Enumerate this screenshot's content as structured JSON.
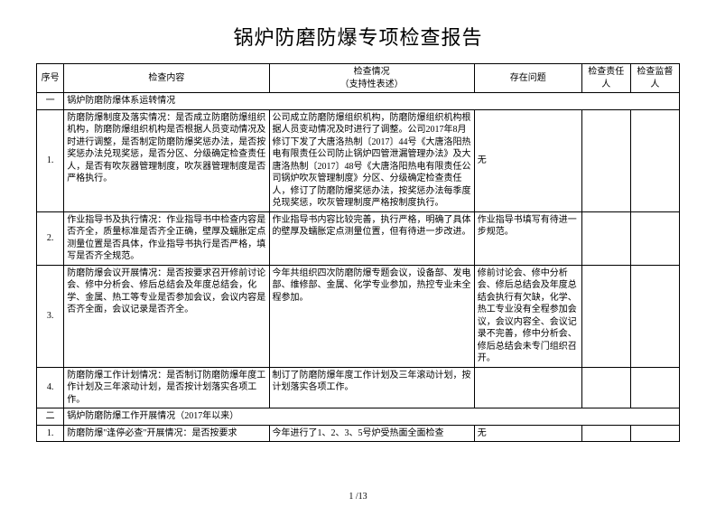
{
  "title": "锅炉防磨防爆专项检查报告",
  "header": {
    "col1": "序号",
    "col2": "检查内容",
    "col3_line1": "检查情况",
    "col3_line2": "（支持性表述）",
    "col4": "存在问题",
    "col5": "检查责任人",
    "col6": "检查监督人"
  },
  "sections": {
    "s1_idx": "一",
    "s1_title": "锅炉防磨防爆体系运转情况",
    "s2_idx": "二",
    "s2_title": "锅炉防磨防爆工作开展情况（2017年以来）"
  },
  "rows": {
    "r1_idx": "1.",
    "r1_content": "防磨防爆制度及落实情况：是否成立防磨防爆组织机构，防磨防爆组织机构是否根据人员变动情况及时进行调整，是否制定防磨防爆奖惩办法，是否按奖惩办法兑现奖惩，是否分区、分级确定检查责任人，是否有吹灰器管理制度，吹灰器管理制度是否严格执行。",
    "r1_status": "公司成立防磨防爆组织机构，防磨防爆组织机构根据人员变动情况及时进行了调整。公司2017年8月修订下发了大唐洛热制〔2017〕44号《大唐洛阳热电有限责任公司防止锅炉四管泄漏管理办法》及大唐洛热制〔2017〕48号《大唐洛阳热电有限责任公司锅炉吹灰管理制度》分区、分级确定检查责任人，修订了防磨防爆奖惩办法，按奖惩办法每季度兑现奖惩，吹灰管理制度严格按制度执行。",
    "r1_issue": "无",
    "r2_idx": "2.",
    "r2_content": "作业指导书及执行情况：作业指导书中检查内容是否齐全，质量标准是否齐全正确，壁厚及蠕胀定点测量位置是否具体，作业指导书执行是否严格，填写是否齐全规范。",
    "r2_status": "作业指导书内容比较完善，执行严格，明确了具体的壁厚及蠕胀定点测量位置，但有待进一步改进。",
    "r2_issue": "作业指导书填写有待进一步规范。",
    "r3_idx": "3.",
    "r3_content": "防磨防爆会议开展情况：是否按要求召开修前讨论会、修中分析会、修后总结会及年度总结会，化学、金属、热工等专业是否参加会议，会议内容是否齐全面，会议记录是否齐全。",
    "r3_status": "今年共组织四次防磨防爆专题会议，设备部、发电部、维修部、金属、化学专业参加，热控专业未全程参加。",
    "r3_issue": "修前讨论会、修中分析会、修后总结会及年度总结会执行有欠缺，化学、热工专业没有全程参加会议，会议内容全、会议记录不完善，修中分析会、修后总结会未专门组织召开。",
    "r4_idx": "4.",
    "r4_content": "防磨防爆工作计划情况：是否制订防磨防爆年度工作计划及三年滚动计划，是否按计划落实各项工作。",
    "r4_status": "制订了防磨防爆年度工作计划及三年滚动计划，按计划落实各项工作。",
    "r4_issue": "",
    "r5_idx": "1.",
    "r5_content": "防磨防爆\"逢停必查\"开展情况：是否按要求",
    "r5_status": "今年进行了1、2、3、5号炉受热面全面检查",
    "r5_issue": "无"
  },
  "footer": "1 /13"
}
